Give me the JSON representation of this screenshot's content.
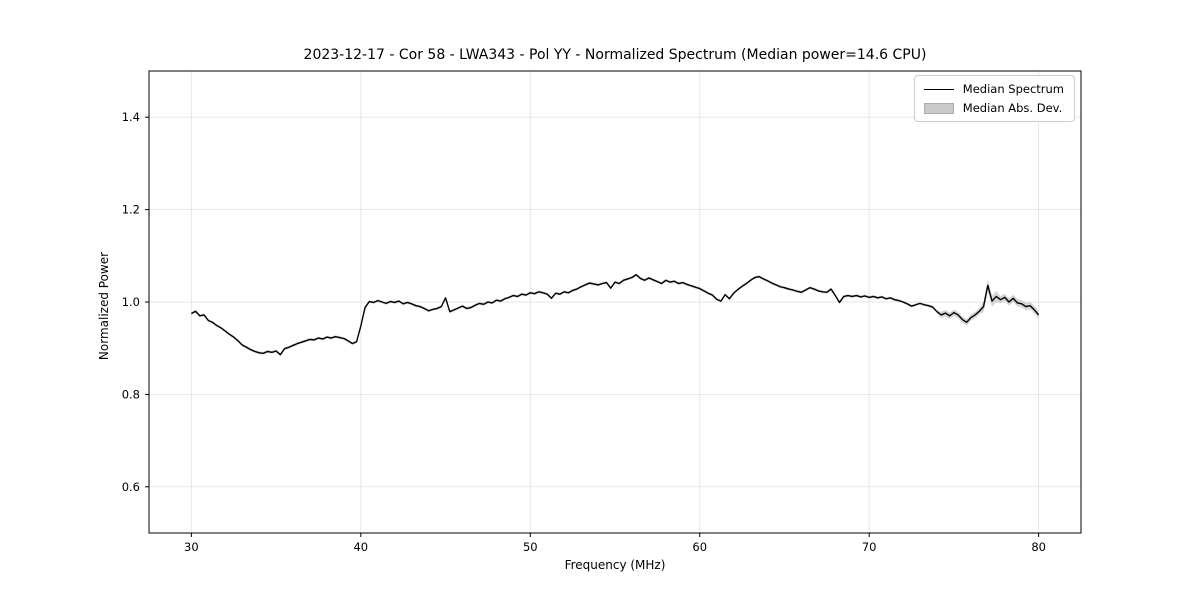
{
  "chart": {
    "title": "2023-12-17 - Cor 58 - LWA343 - Pol YY - Normalized Spectrum (Median power=14.6 CPU)",
    "xlabel": "Frequency (MHz)",
    "ylabel": "Normalized Power",
    "legend": [
      "Median Spectrum",
      "Median Abs. Dev."
    ]
  },
  "chart_data": {
    "type": "line",
    "title": "2023-12-17 - Cor 58 - LWA343 - Pol YY - Normalized Spectrum (Median power=14.6 CPU)",
    "xlabel": "Frequency (MHz)",
    "ylabel": "Normalized Power",
    "xlim": [
      27.5,
      82.5
    ],
    "ylim": [
      0.5,
      1.5
    ],
    "grid": true,
    "legend_position": "upper right",
    "x_ticks": [
      30,
      40,
      50,
      60,
      70,
      80
    ],
    "x_tick_labels": [
      "30",
      "40",
      "50",
      "60",
      "70",
      "80"
    ],
    "y_ticks": [
      0.6,
      0.8,
      1.0,
      1.2,
      1.4
    ],
    "y_tick_labels": [
      "0.6",
      "0.8",
      "1.0",
      "1.2",
      "1.4"
    ],
    "colors": {
      "line": "#000000",
      "band": "#bfbfbf",
      "grid": "#e4e4e4",
      "spine": "#000000"
    },
    "series": [
      {
        "name": "Median Spectrum",
        "x_start": 30.0,
        "x_step": 0.25,
        "values": [
          0.975,
          0.98,
          0.97,
          0.972,
          0.96,
          0.956,
          0.949,
          0.944,
          0.937,
          0.93,
          0.924,
          0.916,
          0.907,
          0.902,
          0.897,
          0.893,
          0.89,
          0.889,
          0.893,
          0.891,
          0.894,
          0.886,
          0.899,
          0.902,
          0.906,
          0.91,
          0.913,
          0.916,
          0.919,
          0.918,
          0.922,
          0.92,
          0.924,
          0.922,
          0.925,
          0.923,
          0.921,
          0.916,
          0.91,
          0.914,
          0.948,
          0.988,
          1.001,
          0.999,
          1.003,
          1.0,
          0.997,
          1.001,
          0.999,
          1.002,
          0.996,
          0.999,
          0.996,
          0.992,
          0.99,
          0.986,
          0.981,
          0.984,
          0.986,
          0.99,
          1.009,
          0.979,
          0.983,
          0.987,
          0.991,
          0.986,
          0.988,
          0.993,
          0.997,
          0.995,
          1.0,
          0.998,
          1.004,
          1.002,
          1.007,
          1.01,
          1.014,
          1.012,
          1.017,
          1.015,
          1.02,
          1.018,
          1.022,
          1.02,
          1.017,
          1.008,
          1.019,
          1.017,
          1.022,
          1.02,
          1.025,
          1.028,
          1.033,
          1.037,
          1.041,
          1.039,
          1.037,
          1.04,
          1.042,
          1.03,
          1.043,
          1.04,
          1.047,
          1.05,
          1.053,
          1.059,
          1.051,
          1.047,
          1.052,
          1.048,
          1.044,
          1.04,
          1.047,
          1.043,
          1.045,
          1.04,
          1.042,
          1.038,
          1.035,
          1.032,
          1.029,
          1.024,
          1.019,
          1.015,
          1.006,
          1.002,
          1.016,
          1.007,
          1.019,
          1.027,
          1.034,
          1.04,
          1.047,
          1.053,
          1.055,
          1.05,
          1.046,
          1.041,
          1.037,
          1.033,
          1.031,
          1.028,
          1.026,
          1.023,
          1.021,
          1.026,
          1.031,
          1.028,
          1.024,
          1.022,
          1.021,
          1.028,
          1.014,
          0.999,
          1.012,
          1.014,
          1.012,
          1.014,
          1.011,
          1.013,
          1.01,
          1.012,
          1.009,
          1.011,
          1.007,
          1.009,
          1.005,
          1.003,
          1.0,
          0.996,
          0.991,
          0.994,
          0.997,
          0.994,
          0.992,
          0.989,
          0.979,
          0.972,
          0.976,
          0.97,
          0.977,
          0.972,
          0.962,
          0.956,
          0.966,
          0.972,
          0.98,
          0.99,
          1.036,
          1.002,
          1.012,
          1.005,
          1.01,
          1.0,
          1.008,
          0.998,
          0.996,
          0.99,
          0.992,
          0.983,
          0.972
        ]
      },
      {
        "name": "Median Abs. Dev.",
        "band_segments": [
          {
            "from": 30.0,
            "to": 74.0,
            "mad": 0.003
          },
          {
            "from": 74.0,
            "to": 76.5,
            "mad": 0.007
          },
          {
            "from": 76.5,
            "to": 77.5,
            "mad": 0.012
          },
          {
            "from": 77.5,
            "to": 80.0,
            "mad": 0.008
          }
        ]
      }
    ]
  }
}
